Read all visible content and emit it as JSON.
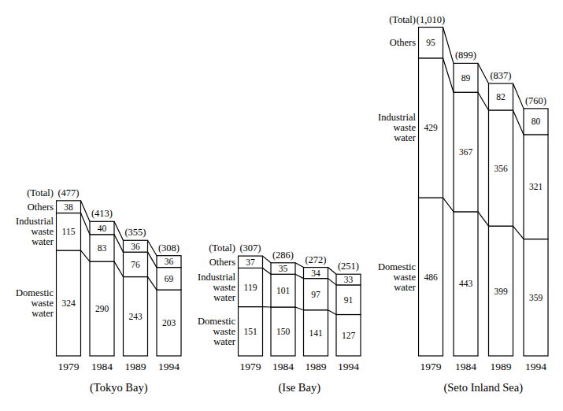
{
  "chart_data": [
    {
      "type": "bar",
      "title": "(Tokyo Bay)",
      "stacked": true,
      "data_labels": true,
      "tick_labels": "x",
      "categories": [
        "1979",
        "1984",
        "1989",
        "1994"
      ],
      "ylim": [
        0,
        1050
      ],
      "series": [
        {
          "name": "Domestic waste water",
          "color": "#ffffff",
          "values": [
            324,
            290,
            243,
            203
          ]
        },
        {
          "name": "Industrial waste water",
          "color": "#ffffff",
          "values": [
            115,
            83,
            76,
            69
          ]
        },
        {
          "name": "Others",
          "color": "#ffffff",
          "values": [
            38,
            40,
            36,
            36
          ]
        }
      ],
      "totals": {
        "name": "(Total)",
        "values": [
          477,
          413,
          355,
          308
        ],
        "value_labels": [
          "(477)",
          "(413)",
          "(355)",
          "(308)"
        ]
      }
    },
    {
      "type": "bar",
      "title": "(Ise Bay)",
      "stacked": true,
      "data_labels": true,
      "tick_labels": "x",
      "categories": [
        "1979",
        "1984",
        "1989",
        "1994"
      ],
      "ylim": [
        0,
        1050
      ],
      "series": [
        {
          "name": "Domestic waste water",
          "color": "#ffffff",
          "values": [
            151,
            150,
            141,
            127
          ]
        },
        {
          "name": "Industrial waste water",
          "color": "#ffffff",
          "values": [
            119,
            101,
            97,
            91
          ]
        },
        {
          "name": "Others",
          "color": "#ffffff",
          "values": [
            37,
            35,
            34,
            33
          ]
        }
      ],
      "totals": {
        "name": "(Total)",
        "values": [
          307,
          286,
          272,
          251
        ],
        "value_labels": [
          "(307)",
          "(286)",
          "(272)",
          "(251)"
        ]
      }
    },
    {
      "type": "bar",
      "title": "(Seto Inland Sea)",
      "stacked": true,
      "data_labels": true,
      "tick_labels": "x",
      "categories": [
        "1979",
        "1984",
        "1989",
        "1994"
      ],
      "ylim": [
        0,
        1050
      ],
      "series": [
        {
          "name": "Domestic waste water",
          "color": "#ffffff",
          "values": [
            486,
            443,
            399,
            359
          ]
        },
        {
          "name": "Industrial waste water",
          "color": "#ffffff",
          "values": [
            429,
            367,
            356,
            321
          ]
        },
        {
          "name": "Others",
          "color": "#ffffff",
          "values": [
            95,
            89,
            82,
            80
          ]
        }
      ],
      "totals": {
        "name": "(Total)",
        "values": [
          1010,
          899,
          837,
          760
        ],
        "value_labels": [
          "(1,010)",
          "(899)",
          "(837)",
          "(760)"
        ]
      }
    }
  ]
}
